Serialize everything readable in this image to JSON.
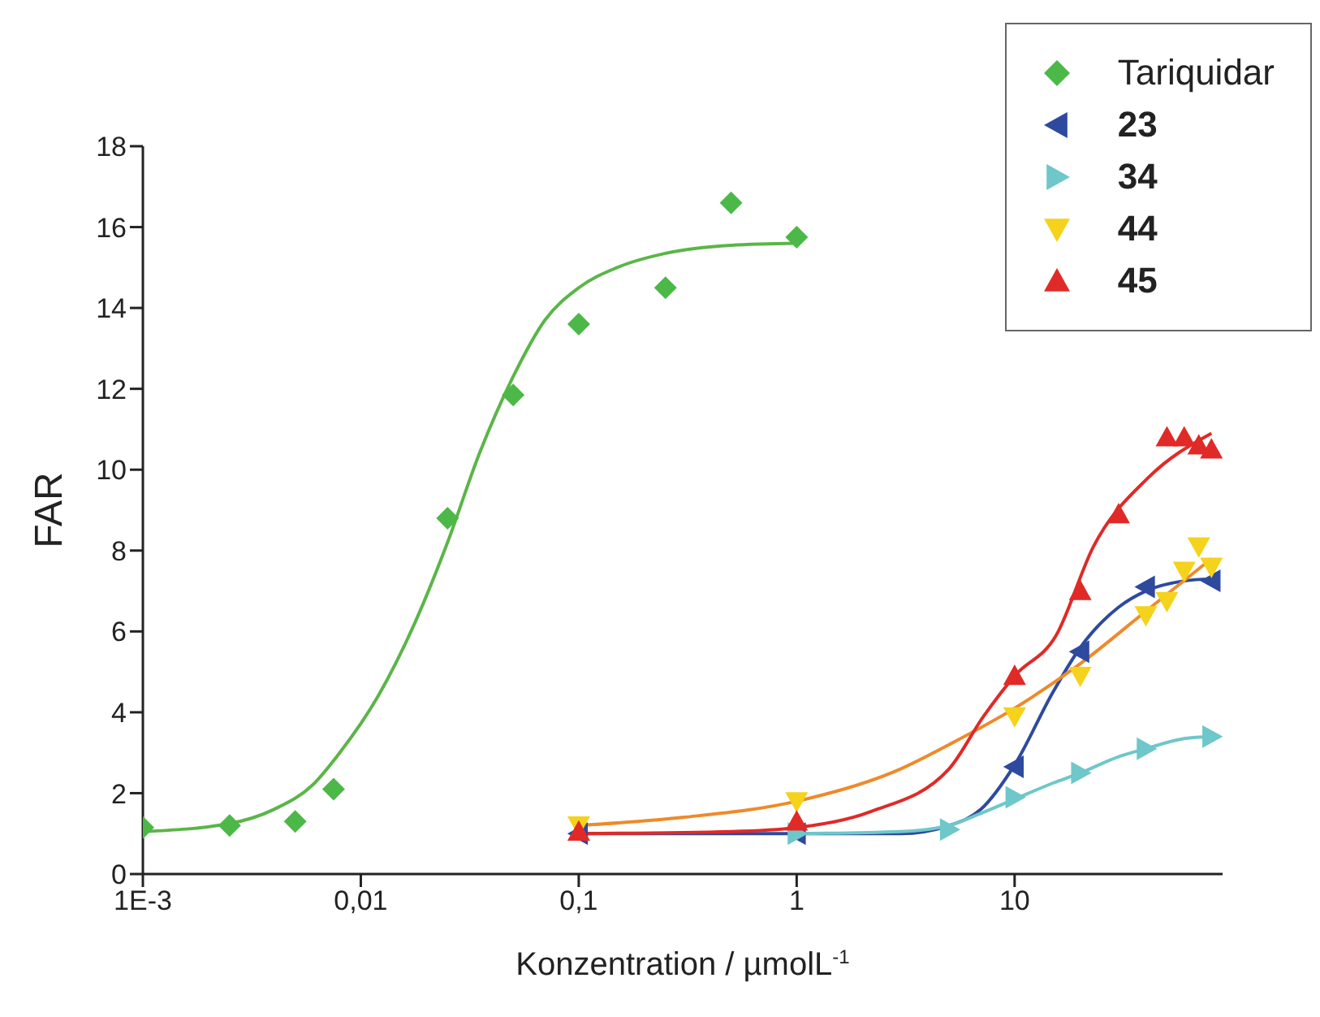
{
  "chart_data": {
    "type": "scatter",
    "xlabel": "Konzentration / µmolL$^{-1}$",
    "ylabel": "FAR",
    "log": "x",
    "xlim": [
      0.001,
      90
    ],
    "xticks": [
      {
        "value": 0.001,
        "label": "1E-3"
      },
      {
        "value": 0.01,
        "label": "0,01"
      },
      {
        "value": 0.1,
        "label": "0,1"
      },
      {
        "value": 1,
        "label": "1"
      },
      {
        "value": 10,
        "label": "10"
      }
    ],
    "ylim": [
      0,
      18
    ],
    "yticks": [
      0,
      2,
      4,
      6,
      8,
      10,
      12,
      14,
      16,
      18
    ],
    "legend": "top right",
    "series": [
      {
        "name": "Tariquidar",
        "color": "#4cb848",
        "marker": "diamond",
        "x": [
          0.001,
          0.0025,
          0.005,
          0.0075,
          0.025,
          0.05,
          0.1,
          0.25,
          0.5,
          1
        ],
        "values": [
          1.15,
          1.2,
          1.3,
          2.1,
          8.8,
          11.85,
          13.6,
          14.5,
          16.6,
          15.75
        ]
      },
      {
        "name": "23",
        "color": "#2e4a9e",
        "marker": "triangle-left",
        "x": [
          0.1,
          1,
          10,
          20,
          40,
          80
        ],
        "values": [
          1.0,
          1.0,
          2.65,
          5.5,
          7.1,
          7.25
        ]
      },
      {
        "name": "34",
        "color": "#6ec7c9",
        "marker": "triangle-right",
        "x": [
          1,
          5,
          10,
          20,
          40,
          80
        ],
        "values": [
          1.0,
          1.1,
          1.9,
          2.5,
          3.1,
          3.4
        ]
      },
      {
        "name": "44",
        "color": "#f5d21c",
        "marker": "triangle-down",
        "x": [
          0.1,
          1,
          10,
          20,
          40,
          50,
          60,
          70,
          80
        ],
        "values": [
          1.2,
          1.8,
          3.9,
          4.9,
          6.4,
          6.75,
          7.5,
          8.1,
          7.6
        ]
      },
      {
        "name": "45",
        "color": "#e02a27",
        "marker": "triangle",
        "x": [
          0.1,
          1,
          10,
          20,
          30,
          50,
          60,
          70,
          80
        ],
        "values": [
          1.05,
          1.3,
          4.9,
          7.0,
          8.9,
          10.8,
          10.8,
          10.6,
          10.5
        ]
      },
      {
        "type": "line",
        "color": "#5bb548",
        "x": [
          0.001,
          0.0025,
          0.004,
          0.006,
          0.008,
          0.012,
          0.018,
          0.025,
          0.035,
          0.05,
          0.07,
          0.1,
          0.15,
          0.25,
          0.5,
          1
        ],
        "values": [
          1.05,
          1.25,
          1.6,
          2.2,
          3.0,
          4.4,
          6.3,
          8.2,
          10.4,
          12.3,
          13.7,
          14.5,
          15.0,
          15.35,
          15.55,
          15.6
        ]
      },
      {
        "type": "line",
        "color": "#2e4a9e",
        "x": [
          0.1,
          1,
          3,
          5,
          7,
          10,
          15,
          20,
          30,
          40,
          60,
          80
        ],
        "values": [
          1.0,
          1.0,
          1.0,
          1.2,
          1.6,
          2.7,
          4.5,
          5.6,
          6.6,
          7.0,
          7.25,
          7.3
        ]
      },
      {
        "type": "line",
        "color": "#6ec7c9",
        "x": [
          1,
          3,
          5,
          7,
          10,
          15,
          20,
          30,
          40,
          60,
          80
        ],
        "values": [
          1.0,
          1.05,
          1.2,
          1.5,
          1.85,
          2.25,
          2.5,
          2.9,
          3.1,
          3.35,
          3.4
        ]
      },
      {
        "type": "line",
        "color": "#ee8a2a",
        "x": [
          0.1,
          0.3,
          1,
          3,
          5,
          10,
          20,
          40,
          80
        ],
        "values": [
          1.2,
          1.4,
          1.8,
          2.6,
          3.2,
          4.1,
          5.2,
          6.5,
          7.8
        ]
      },
      {
        "type": "line",
        "color": "#e02a27",
        "x": [
          0.1,
          0.5,
          1,
          2.2,
          5,
          7.2,
          10,
          15.5,
          23,
          41,
          80
        ],
        "values": [
          1.0,
          1.05,
          1.15,
          1.55,
          2.6,
          3.9,
          4.9,
          5.9,
          8.1,
          9.8,
          10.9
        ]
      }
    ]
  }
}
